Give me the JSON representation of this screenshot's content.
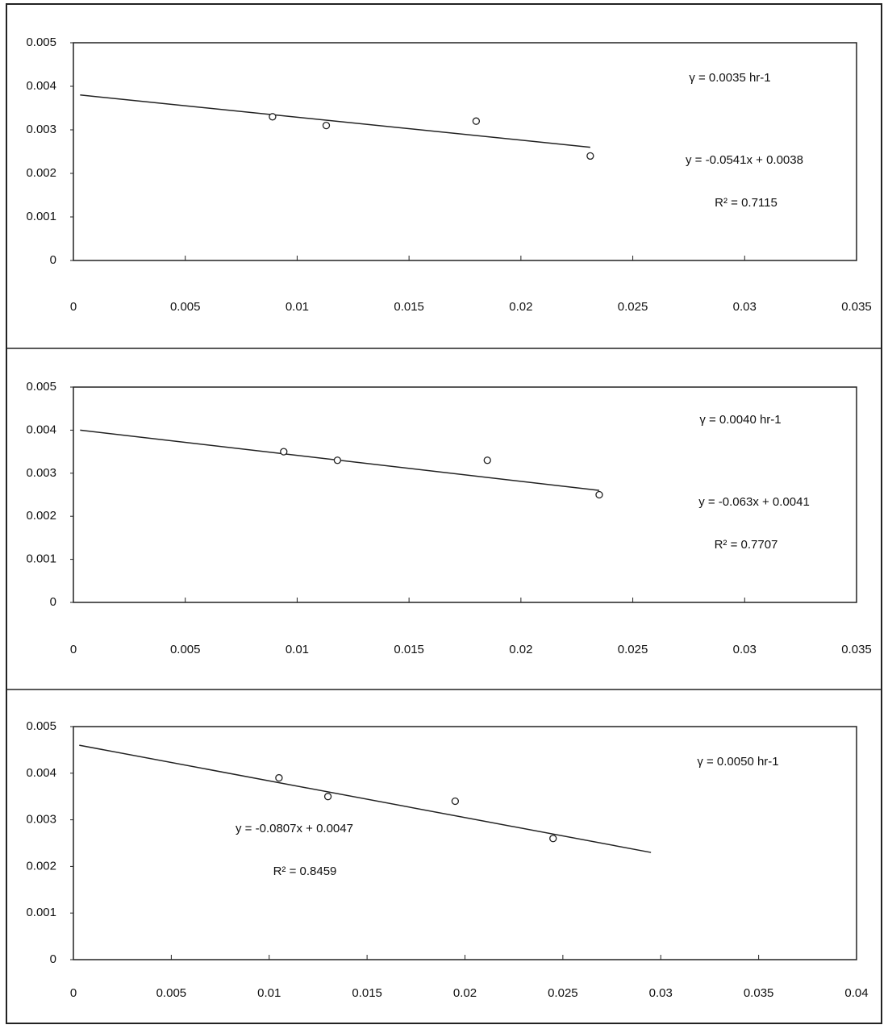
{
  "chart_data": [
    {
      "type": "scatter",
      "x": [
        0.0089,
        0.0113,
        0.018,
        0.0231
      ],
      "values": [
        0.0033,
        0.0031,
        0.0032,
        0.0024
      ],
      "trendline": {
        "x": [
          0.0003,
          0.0231
        ],
        "y": [
          0.0038,
          0.0026
        ]
      },
      "xlim": [
        0,
        0.035
      ],
      "xticks": [
        0,
        0.005,
        0.01,
        0.015,
        0.02,
        0.025,
        0.03,
        0.035
      ],
      "ylim": [
        0,
        0.005
      ],
      "yticks": [
        0,
        0.001,
        0.002,
        0.003,
        0.004,
        0.005
      ],
      "annotations": [
        "γ = 0.0035  hr-1",
        "y = -0.0541x + 0.0038",
        "R² = 0.7115"
      ]
    },
    {
      "type": "scatter",
      "x": [
        0.0094,
        0.0118,
        0.0185,
        0.0235
      ],
      "values": [
        0.0035,
        0.0033,
        0.0033,
        0.0025
      ],
      "trendline": {
        "x": [
          0.0003,
          0.0235
        ],
        "y": [
          0.004,
          0.0026
        ]
      },
      "xlim": [
        0,
        0.035
      ],
      "xticks": [
        0,
        0.005,
        0.01,
        0.015,
        0.02,
        0.025,
        0.03,
        0.035
      ],
      "ylim": [
        0,
        0.005
      ],
      "yticks": [
        0,
        0.001,
        0.002,
        0.003,
        0.004,
        0.005
      ],
      "annotations": [
        "γ = 0.0040  hr-1",
        "y = -0.063x + 0.0041",
        "R² = 0.7707"
      ]
    },
    {
      "type": "scatter",
      "x": [
        0.0105,
        0.013,
        0.0195,
        0.0245
      ],
      "values": [
        0.0039,
        0.0035,
        0.0034,
        0.0026
      ],
      "trendline": {
        "x": [
          0.0003,
          0.0295
        ],
        "y": [
          0.0046,
          0.0023
        ]
      },
      "xlim": [
        0,
        0.04
      ],
      "xticks": [
        0,
        0.005,
        0.01,
        0.015,
        0.02,
        0.025,
        0.03,
        0.035,
        0.04
      ],
      "ylim": [
        0,
        0.005
      ],
      "yticks": [
        0,
        0.001,
        0.002,
        0.003,
        0.004,
        0.005
      ],
      "annotations": [
        "γ = 0.0050 hr-1",
        "y = -0.0807x + 0.0047",
        "R² = 0.8459"
      ]
    }
  ]
}
